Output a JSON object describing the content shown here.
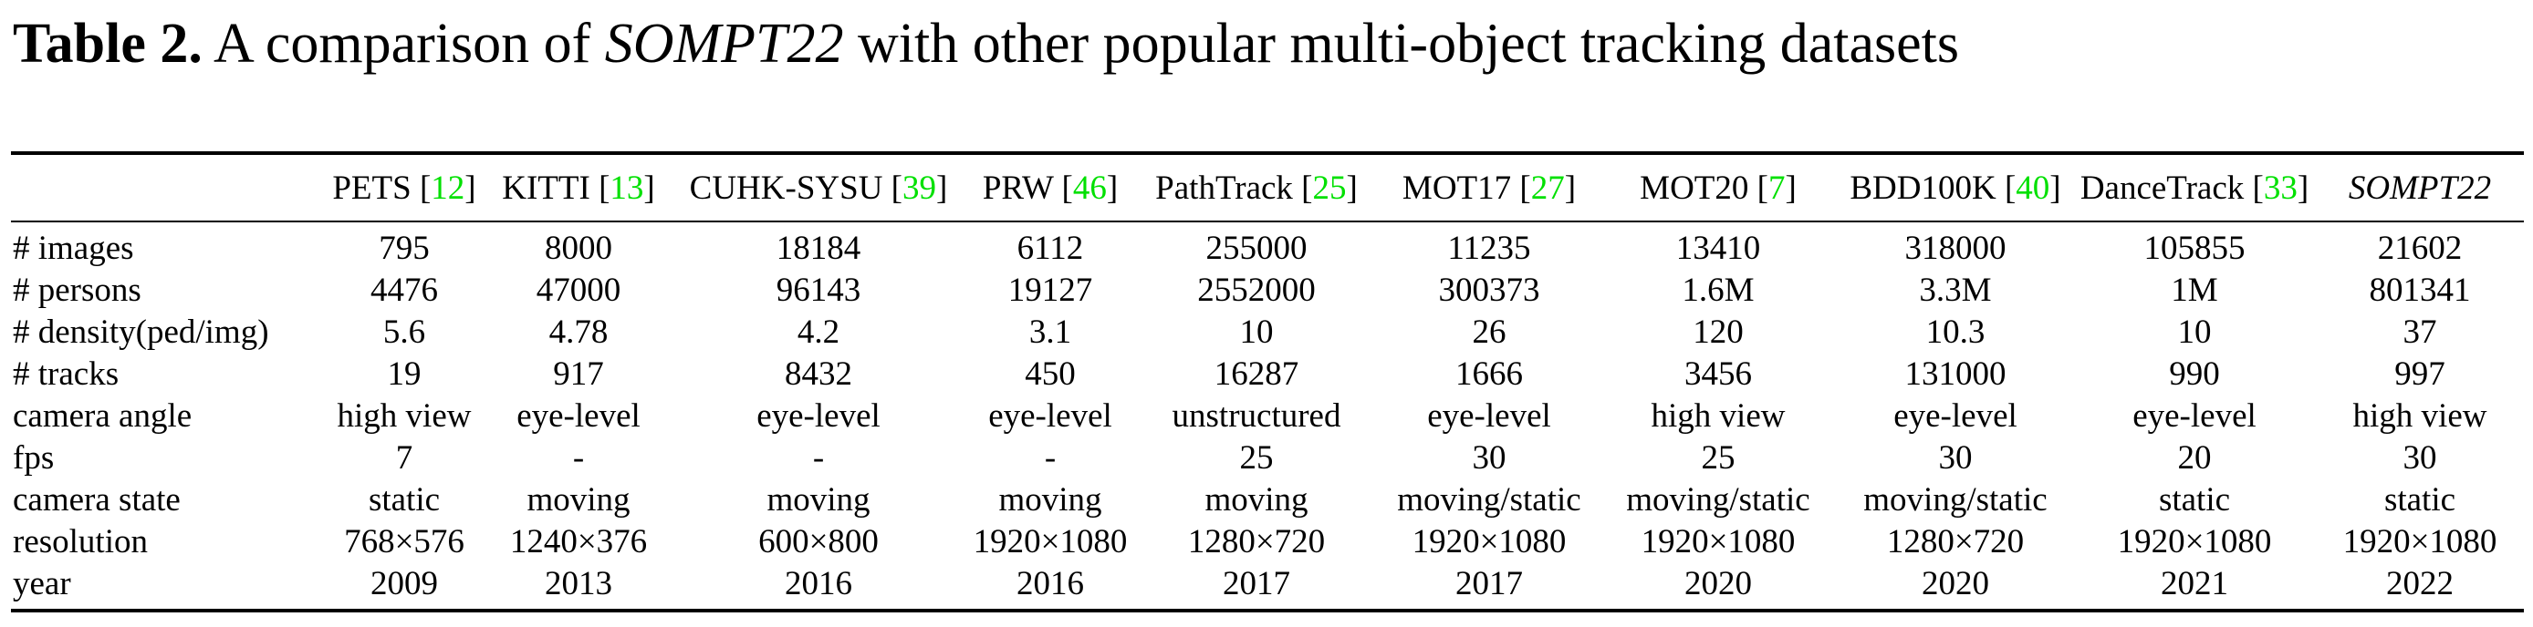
{
  "caption": {
    "label": "Table 2.",
    "text_before": " A comparison of ",
    "emphasis": "SOMPT22",
    "text_after": " with other popular multi-object tracking datasets"
  },
  "colors": {
    "citation": "#00e000",
    "text": "#000000",
    "rule": "#000000"
  },
  "table": {
    "columns": [
      {
        "name": "PETS",
        "ref": "12",
        "italic": false
      },
      {
        "name": "KITTI",
        "ref": "13",
        "italic": false
      },
      {
        "name": "CUHK-SYSU",
        "ref": "39",
        "italic": false
      },
      {
        "name": "PRW",
        "ref": "46",
        "italic": false
      },
      {
        "name": "PathTrack",
        "ref": "25",
        "italic": false
      },
      {
        "name": "MOT17",
        "ref": "27",
        "italic": false
      },
      {
        "name": "MOT20",
        "ref": "7",
        "italic": false
      },
      {
        "name": "BDD100K",
        "ref": "40",
        "italic": false
      },
      {
        "name": "DanceTrack",
        "ref": "33",
        "italic": false
      },
      {
        "name": "SOMPT22",
        "ref": "",
        "italic": true
      }
    ],
    "rows": [
      {
        "label": "# images",
        "values": [
          "795",
          "8000",
          "18184",
          "6112",
          "255000",
          "11235",
          "13410",
          "318000",
          "105855",
          "21602"
        ]
      },
      {
        "label": "# persons",
        "values": [
          "4476",
          "47000",
          "96143",
          "19127",
          "2552000",
          "300373",
          "1.6M",
          "3.3M",
          "1M",
          "801341"
        ]
      },
      {
        "label": "# density(ped/img)",
        "values": [
          "5.6",
          "4.78",
          "4.2",
          "3.1",
          "10",
          "26",
          "120",
          "10.3",
          "10",
          "37"
        ]
      },
      {
        "label": "# tracks",
        "values": [
          "19",
          "917",
          "8432",
          "450",
          "16287",
          "1666",
          "3456",
          "131000",
          "990",
          "997"
        ]
      },
      {
        "label": "camera angle",
        "values": [
          "high view",
          "eye-level",
          "eye-level",
          "eye-level",
          "unstructured",
          "eye-level",
          "high view",
          "eye-level",
          "eye-level",
          "high view"
        ]
      },
      {
        "label": "fps",
        "values": [
          "7",
          "-",
          "-",
          "-",
          "25",
          "30",
          "25",
          "30",
          "20",
          "30"
        ]
      },
      {
        "label": "camera state",
        "values": [
          "static",
          "moving",
          "moving",
          "moving",
          "moving",
          "moving/static",
          "moving/static",
          "moving/static",
          "static",
          "static"
        ]
      },
      {
        "label": "resolution",
        "values": [
          "768×576",
          "1240×376",
          "600×800",
          "1920×1080",
          "1280×720",
          "1920×1080",
          "1920×1080",
          "1280×720",
          "1920×1080",
          "1920×1080"
        ]
      },
      {
        "label": "year",
        "values": [
          "2009",
          "2013",
          "2016",
          "2016",
          "2017",
          "2017",
          "2020",
          "2020",
          "2021",
          "2022"
        ]
      }
    ]
  }
}
